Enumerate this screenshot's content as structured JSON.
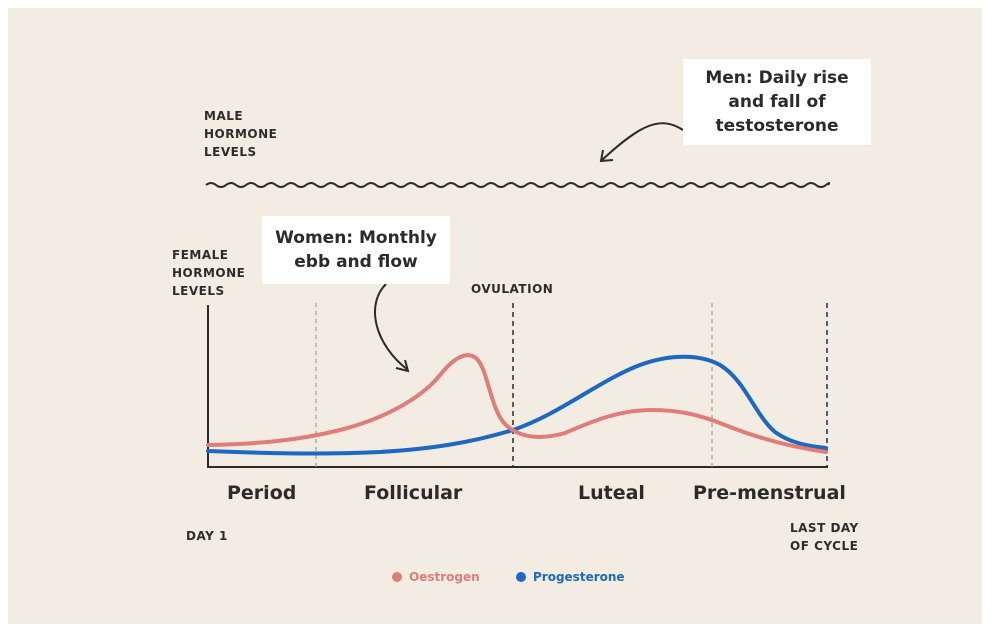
{
  "labels": {
    "male_axis": [
      "MALE",
      "HORMONE",
      "LEVELS"
    ],
    "female_axis": [
      "FEMALE",
      "HORMONE",
      "LEVELS"
    ],
    "ovulation": "OVULATION",
    "day_start": "DAY 1",
    "day_end": [
      "LAST DAY",
      "OF CYCLE"
    ]
  },
  "callouts": {
    "men": [
      "Men: Daily rise",
      "and fall of",
      "testosterone"
    ],
    "women": [
      "Women: Monthly",
      "ebb and flow"
    ]
  },
  "phases": [
    "Period",
    "Follicular",
    "Luteal",
    "Pre-menstrual"
  ],
  "legend": [
    {
      "name": "Oestrogen",
      "color": "#e07d78"
    },
    {
      "name": "Progesterone",
      "color": "#1c68c2"
    }
  ],
  "colors": {
    "background": "#f2ece2",
    "oestrogen": "#e07d78",
    "progesterone": "#1c68c2",
    "ink": "#2b2b2b"
  }
}
